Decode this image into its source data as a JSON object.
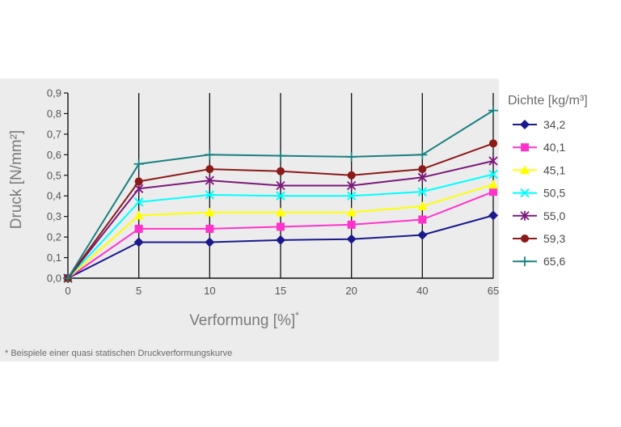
{
  "chart_data": {
    "type": "line",
    "ylabel": "Druck [N/mm²]",
    "xlabel": "Verformung [%]",
    "xlabel_marker": "*",
    "categories": [
      "0",
      "5",
      "10",
      "15",
      "20",
      "40",
      "65"
    ],
    "ylim": [
      0,
      0.9
    ],
    "yticks": [
      "0,0",
      "0,1",
      "0,2",
      "0,3",
      "0,4",
      "0,5",
      "0,6",
      "0,7",
      "0,8",
      "0,9"
    ],
    "grid": "vertical",
    "legend": {
      "title": "Dichte [kg/m³]",
      "placement": "right"
    },
    "footnote": "* Beispiele einer quasi statischen Druckverformungskurve",
    "series": [
      {
        "name": "34,2",
        "color": "#1a1a8c",
        "marker": "diamond",
        "values": [
          0,
          0.175,
          0.175,
          0.185,
          0.19,
          0.21,
          0.305
        ]
      },
      {
        "name": "40,1",
        "color": "#ff33cc",
        "marker": "square",
        "values": [
          0,
          0.24,
          0.24,
          0.25,
          0.26,
          0.285,
          0.42
        ]
      },
      {
        "name": "45,1",
        "color": "#ffff00",
        "marker": "triangle",
        "values": [
          0,
          0.305,
          0.32,
          0.32,
          0.32,
          0.35,
          0.455
        ]
      },
      {
        "name": "50,5",
        "color": "#00ffff",
        "marker": "x",
        "values": [
          0,
          0.37,
          0.405,
          0.4,
          0.4,
          0.42,
          0.505
        ]
      },
      {
        "name": "55,0",
        "color": "#7a1a7a",
        "marker": "star",
        "values": [
          0,
          0.435,
          0.475,
          0.45,
          0.45,
          0.49,
          0.57
        ]
      },
      {
        "name": "59,3",
        "color": "#8b1a1a",
        "marker": "circle",
        "values": [
          0,
          0.47,
          0.53,
          0.52,
          0.5,
          0.53,
          0.655
        ]
      },
      {
        "name": "65,6",
        "color": "#1a8080",
        "marker": "plus",
        "values": [
          0,
          0.555,
          0.6,
          0.595,
          0.59,
          0.6,
          0.815
        ]
      }
    ]
  }
}
